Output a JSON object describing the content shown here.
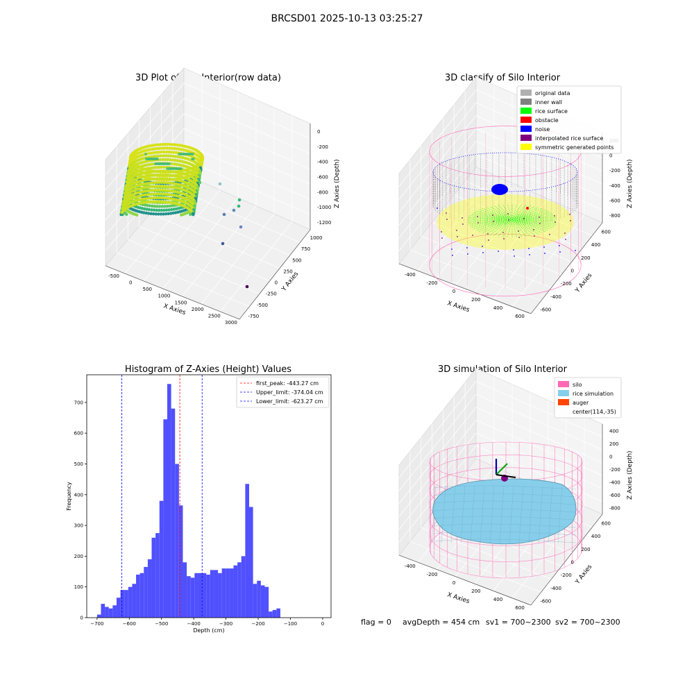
{
  "suptitle": "BRCSD01 2025-10-13 03:25:27",
  "footer": {
    "flag": "flag = 0",
    "avg_depth": "avgDepth = 454 cm",
    "sv1": "sv1 = 700~2300",
    "sv2": "sv2 = 700~2300"
  },
  "colors": {
    "hist_bar": "#5050ff",
    "first_peak_line": "#ff0000",
    "limit_lines": "#0000ff",
    "silo": "#ff69b4",
    "rice_simulation": "#87ceeb",
    "auger": "#ff4500",
    "original": "#b0b0b0",
    "inner_wall": "#808080",
    "rice_surface": "#00ff00",
    "obstacle": "#ff0000",
    "noise": "#0000ff",
    "interpolated": "#800080",
    "symmetric": "#ffff00"
  },
  "chart_data": [
    {
      "type": "scatter3d",
      "title": "3D Plot of Silo Interior(row data)",
      "xlabel": "X Axies",
      "ylabel": "Y Axies",
      "zlabel": "Z Axies (Depth)",
      "x_ticks": [
        "-500",
        "0",
        "500",
        "1000",
        "1500",
        "2000",
        "2500",
        "3000"
      ],
      "y_ticks": [
        "-750",
        "-500",
        "-250",
        "0",
        "250",
        "500",
        "750",
        "1000"
      ],
      "z_ticks": [
        "0",
        "-200",
        "-400",
        "-600",
        "-800",
        "-1000",
        "-1200"
      ]
    },
    {
      "type": "scatter3d",
      "title": "3D classify of Silo Interior",
      "xlabel": "X Axies",
      "ylabel": "Y Axies",
      "zlabel": "Z Axies (Depth)",
      "x_ticks": [
        "-400",
        "-200",
        "0",
        "200",
        "400",
        "600"
      ],
      "y_ticks": [
        "-600",
        "-400",
        "-200",
        "0",
        "200",
        "400",
        "600"
      ],
      "z_ticks": [
        "200",
        "0",
        "-200",
        "-400",
        "-600",
        "-800"
      ],
      "legend": {
        "position": "top-right",
        "entries": [
          {
            "label": "original data",
            "color": "#b0b0b0"
          },
          {
            "label": "inner wall",
            "color": "#808080"
          },
          {
            "label": "rice surface",
            "color": "#00ff00"
          },
          {
            "label": "obstacle",
            "color": "#ff0000"
          },
          {
            "label": "noise",
            "color": "#0000ff"
          },
          {
            "label": "interpolated rice surface",
            "color": "#800080"
          },
          {
            "label": "symmetric generated points",
            "color": "#ffff00"
          }
        ]
      }
    },
    {
      "type": "bar",
      "title": "Histogram of Z-Axies (Height) Values",
      "xlabel": "Depth (cm)",
      "ylabel": "Frequency",
      "xlim": [
        -732,
        26
      ],
      "ylim": [
        0,
        790
      ],
      "x_ticks": [
        -700,
        -600,
        -500,
        -400,
        -300,
        -200,
        -100,
        0
      ],
      "y_ticks": [
        0,
        100,
        200,
        300,
        400,
        500,
        600,
        700
      ],
      "bin_start": -700,
      "bin_width": 12.1,
      "values": [
        10,
        45,
        35,
        30,
        40,
        65,
        90,
        90,
        100,
        110,
        140,
        145,
        165,
        190,
        260,
        275,
        380,
        645,
        760,
        680,
        500,
        365,
        180,
        135,
        130,
        145,
        145,
        145,
        140,
        155,
        155,
        145,
        160,
        160,
        160,
        170,
        180,
        200,
        435,
        360,
        110,
        120,
        105,
        100,
        20,
        25,
        30
      ],
      "vlines": [
        {
          "label": "first_peak: -443.27 cm",
          "x": -443.27,
          "color": "#ff0000"
        },
        {
          "label": "Upper_limit: -374.04 cm",
          "x": -374.04,
          "color": "#0000ff"
        },
        {
          "label": "Lower_limit: -623.27 cm",
          "x": -623.27,
          "color": "#0000ff"
        }
      ],
      "legend": "top-right"
    },
    {
      "type": "surface3d",
      "title": "3D simulation of Silo Interior",
      "xlabel": "X Axies",
      "ylabel": "Y Axies",
      "zlabel": "Z Axies (Depth)",
      "x_ticks": [
        "-400",
        "-200",
        "0",
        "200",
        "400",
        "600"
      ],
      "y_ticks": [
        "-600",
        "-400",
        "-200",
        "0",
        "200",
        "400",
        "600"
      ],
      "z_ticks": [
        "400",
        "200",
        "0",
        "-200",
        "-400",
        "-600",
        "-800"
      ],
      "legend": {
        "position": "top-right",
        "entries": [
          {
            "label": "silo",
            "color": "#ff69b4"
          },
          {
            "label": "rice simulation",
            "color": "#87ceeb"
          },
          {
            "label": "auger",
            "color": "#ff4500"
          },
          {
            "label": "center(114,-35)",
            "color": ""
          }
        ]
      }
    }
  ]
}
